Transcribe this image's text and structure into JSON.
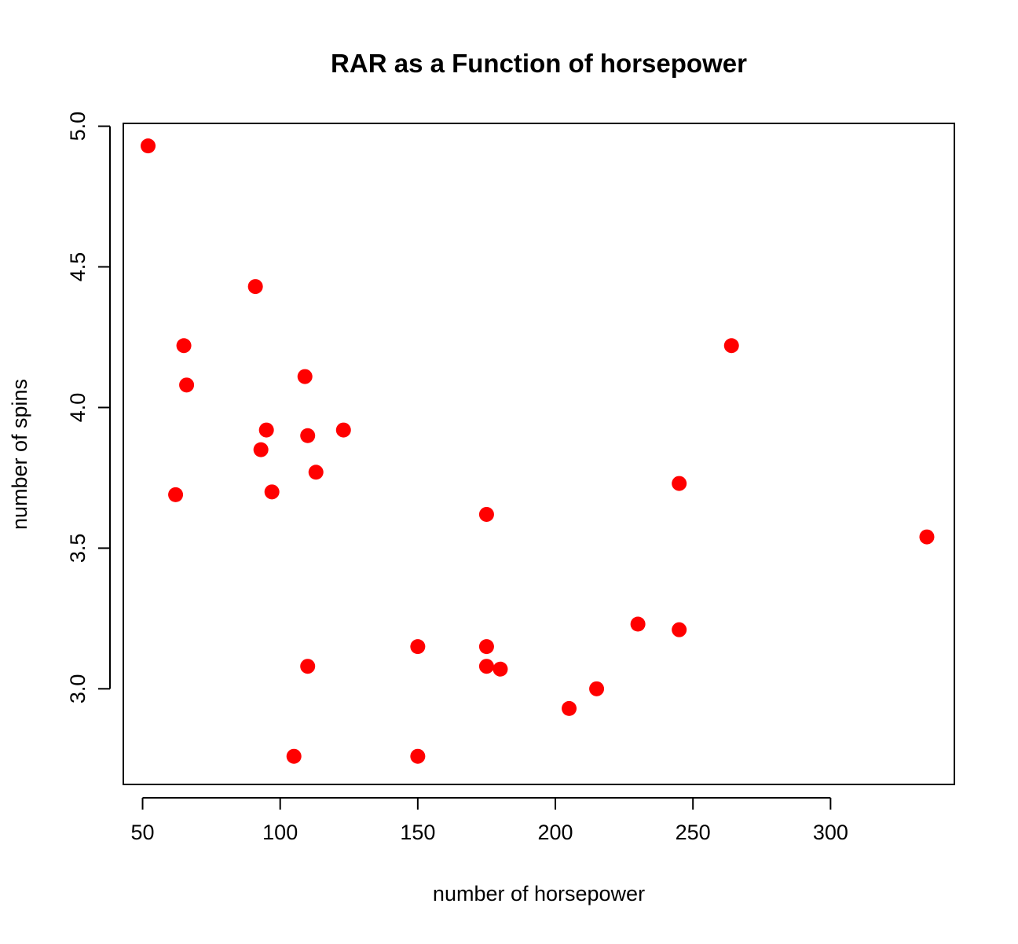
{
  "chart_data": {
    "type": "scatter",
    "title": "RAR as a Function of horsepower",
    "xlabel": "number of horsepower",
    "ylabel": "number of spins",
    "xlim": [
      43,
      345
    ],
    "ylim": [
      2.66,
      5.01
    ],
    "xticks": [
      50,
      100,
      150,
      200,
      250,
      300
    ],
    "yticks": [
      3.0,
      3.5,
      4.0,
      4.5,
      5.0
    ],
    "xtick_labels": [
      "50",
      "100",
      "150",
      "200",
      "250",
      "300"
    ],
    "ytick_labels": [
      "3.0",
      "3.5",
      "4.0",
      "4.5",
      "5.0"
    ],
    "grid": false,
    "point_color": "#ff0000",
    "series": [
      {
        "points": [
          {
            "x": 52,
            "y": 4.93
          },
          {
            "x": 91,
            "y": 4.43
          },
          {
            "x": 65,
            "y": 4.22
          },
          {
            "x": 66,
            "y": 4.08
          },
          {
            "x": 109,
            "y": 4.11
          },
          {
            "x": 95,
            "y": 3.92
          },
          {
            "x": 123,
            "y": 3.92
          },
          {
            "x": 110,
            "y": 3.9
          },
          {
            "x": 93,
            "y": 3.85
          },
          {
            "x": 113,
            "y": 3.77
          },
          {
            "x": 97,
            "y": 3.7
          },
          {
            "x": 62,
            "y": 3.69
          },
          {
            "x": 175,
            "y": 3.62
          },
          {
            "x": 264,
            "y": 4.22
          },
          {
            "x": 245,
            "y": 3.73
          },
          {
            "x": 335,
            "y": 3.54
          },
          {
            "x": 230,
            "y": 3.23
          },
          {
            "x": 245,
            "y": 3.21
          },
          {
            "x": 150,
            "y": 3.15
          },
          {
            "x": 175,
            "y": 3.15
          },
          {
            "x": 110,
            "y": 3.08
          },
          {
            "x": 175,
            "y": 3.08
          },
          {
            "x": 180,
            "y": 3.07
          },
          {
            "x": 215,
            "y": 3.0
          },
          {
            "x": 205,
            "y": 2.93
          },
          {
            "x": 105,
            "y": 2.76
          },
          {
            "x": 150,
            "y": 2.76
          }
        ]
      }
    ]
  }
}
